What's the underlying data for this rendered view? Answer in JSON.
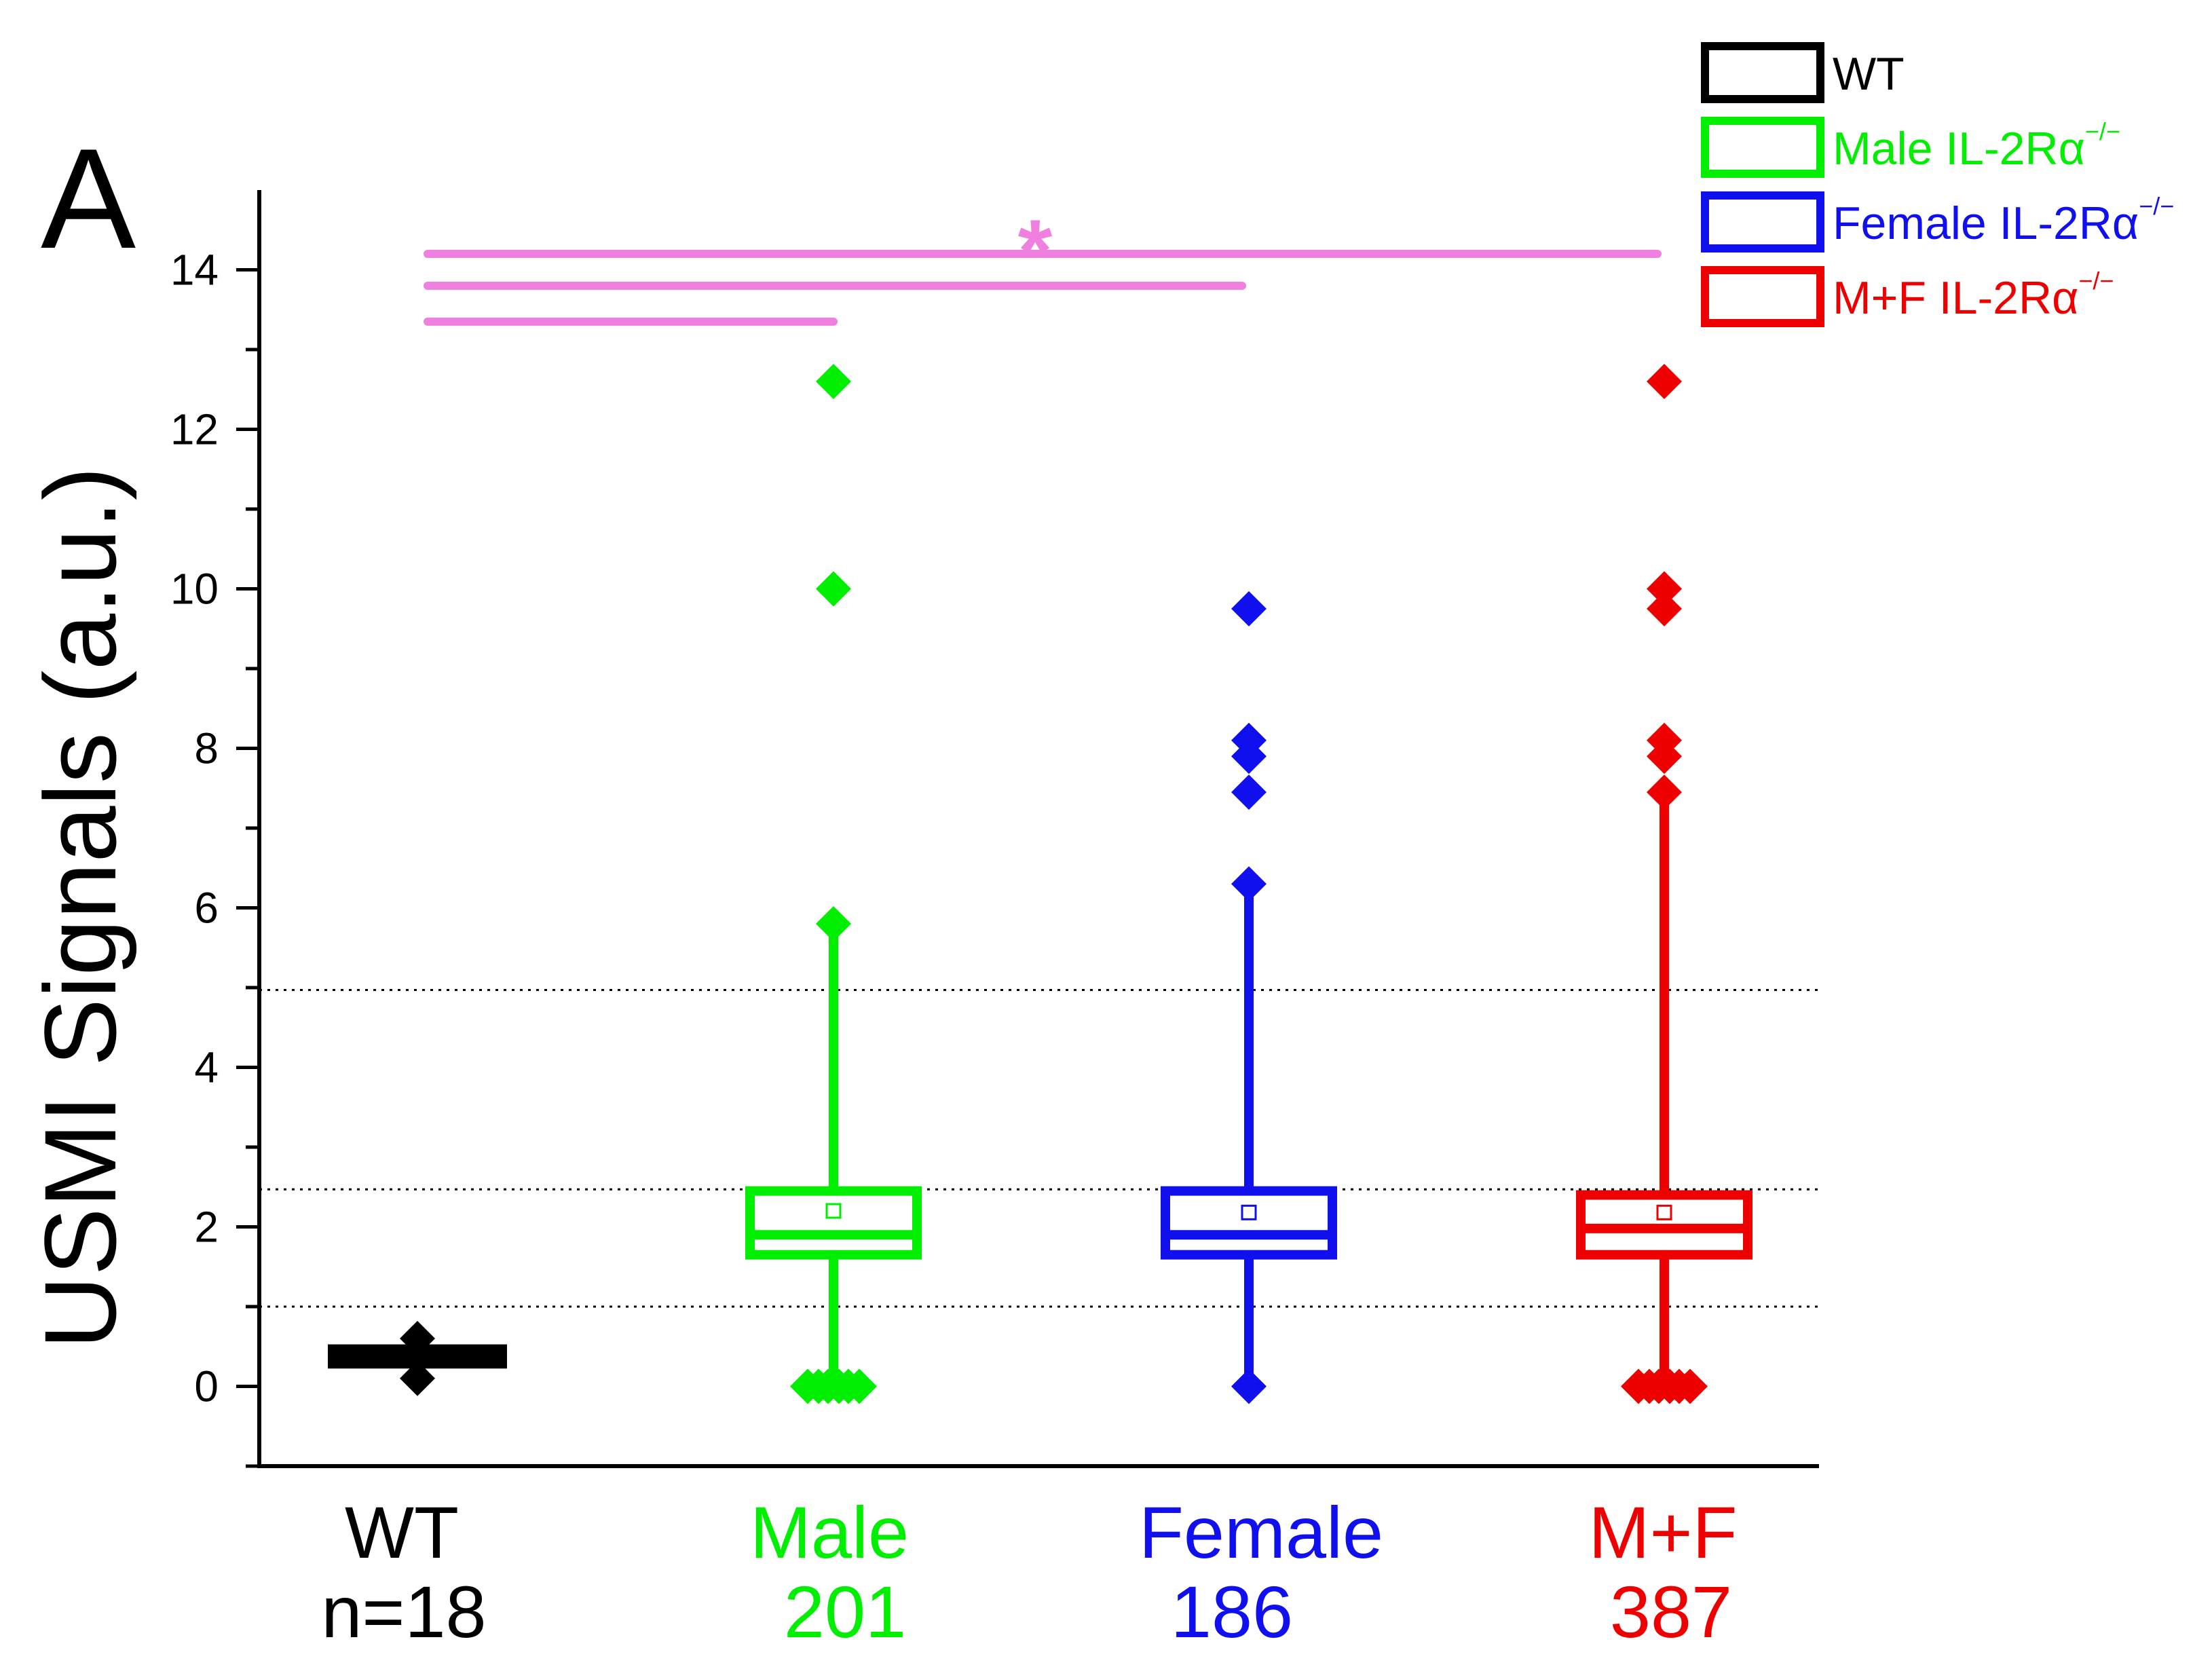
{
  "chart_data": {
    "type": "box",
    "panel_label": "A",
    "ylabel": "USMI Signals (a.u.)",
    "ylim": [
      -1,
      15
    ],
    "yticks": [
      0,
      2,
      4,
      6,
      8,
      10,
      12,
      14
    ],
    "reference_lines": [
      1.0,
      2.47,
      4.97
    ],
    "significance": {
      "marker": "*",
      "color": "#f080e0",
      "bars": [
        {
          "from": "WT",
          "to": "Male",
          "y": 13.35
        },
        {
          "from": "WT",
          "to": "Female",
          "y": 13.8
        },
        {
          "from": "WT",
          "to": "M+F",
          "y": 14.2
        }
      ]
    },
    "legend_position": "top-right",
    "series": [
      {
        "name": "WT",
        "legend": "WT",
        "legend_sup": "",
        "category": "WT",
        "count_label": "n=18",
        "color": "#000000",
        "q1": 0.3,
        "median": 0.38,
        "q3": 0.45,
        "mean": 0.38,
        "whisker_low": 0.3,
        "whisker_high": 0.45,
        "outliers": [
          0.1,
          0.6,
          0.35
        ]
      },
      {
        "name": "Male",
        "legend": "Male IL-2Rα",
        "legend_sup": "−/−",
        "category": "Male",
        "count_label": "201",
        "color": "#00ee00",
        "q1": 1.65,
        "median": 1.9,
        "q3": 2.45,
        "mean": 2.2,
        "whisker_low": 0.0,
        "whisker_high": 5.8,
        "outliers": [
          5.8,
          10.0,
          12.6,
          0.0
        ]
      },
      {
        "name": "Female",
        "legend": "Female IL-2Rα",
        "legend_sup": "−/−",
        "category": "Female",
        "count_label": "186",
        "color": "#1010ee",
        "q1": 1.65,
        "median": 1.9,
        "q3": 2.45,
        "mean": 2.18,
        "whisker_low": 0.0,
        "whisker_high": 6.3,
        "outliers": [
          0.0,
          6.3,
          7.45,
          7.9,
          8.1,
          9.75
        ]
      },
      {
        "name": "M+F",
        "legend": "M+F IL-2Rα",
        "legend_sup": "−/−",
        "category": "M+F",
        "count_label": "387",
        "color": "#ee0000",
        "q1": 1.65,
        "median": 1.98,
        "q3": 2.4,
        "mean": 2.18,
        "whisker_low": 0.0,
        "whisker_high": 7.45,
        "outliers": [
          0.0,
          7.45,
          7.9,
          8.1,
          9.75,
          10.0,
          12.6
        ]
      }
    ]
  }
}
